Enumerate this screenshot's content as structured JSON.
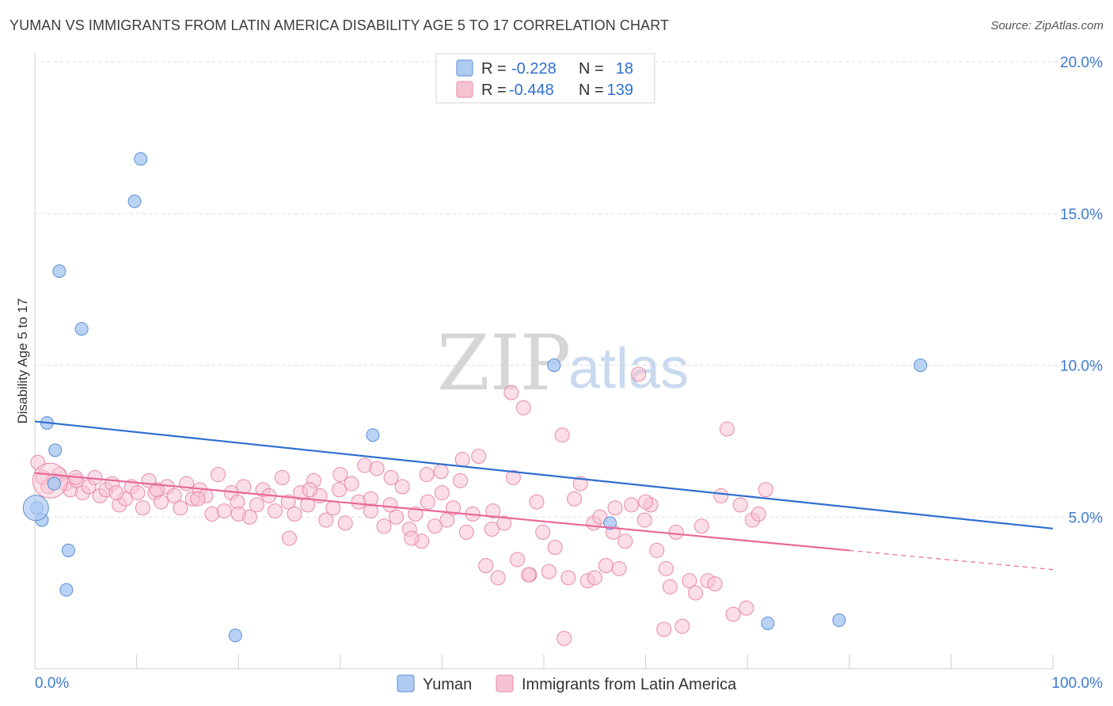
{
  "header": {
    "title": "YUMAN VS IMMIGRANTS FROM LATIN AMERICA DISABILITY AGE 5 TO 17 CORRELATION CHART",
    "source": "Source: ZipAtlas.com"
  },
  "watermark": {
    "zip": "ZIP",
    "atlas": "atlas"
  },
  "legend": {
    "rows": [
      {
        "r_label": "R =",
        "r_value": "-0.228",
        "n_label": "N =",
        "n_value": "18"
      },
      {
        "r_label": "R =",
        "r_value": "-0.448",
        "n_label": "N =",
        "n_value": "139"
      }
    ]
  },
  "bottom_legend": {
    "series1": "Yuman",
    "series2": "Immigrants from Latin America"
  },
  "colors": {
    "blue_fill": "#aecbf2",
    "blue_stroke": "#5b8fd6",
    "blue_line": "#2f6fd0",
    "pink_fill": "#f7c3d3",
    "pink_stroke": "#e88aa8",
    "pink_line": "#e8689a",
    "grid": "#dddddd",
    "tick_text": "#3f7bd0"
  },
  "chart_data": {
    "type": "scatter",
    "title": "YUMAN VS IMMIGRANTS FROM LATIN AMERICA DISABILITY AGE 5 TO 17 CORRELATION CHART",
    "xlabel": "",
    "ylabel": "Disability Age 5 to 17",
    "xlim": [
      0,
      100
    ],
    "ylim": [
      0,
      20
    ],
    "x_tick_labels": [
      "0.0%",
      "100.0%"
    ],
    "y_ticks": [
      {
        "value": 5,
        "label": "5.0%"
      },
      {
        "value": 10,
        "label": "10.0%"
      },
      {
        "value": 15,
        "label": "15.0%"
      },
      {
        "value": 20,
        "label": "20.0%"
      }
    ],
    "series": [
      {
        "name": "Yuman",
        "points": [
          [
            0.2,
            5.3
          ],
          [
            0.7,
            4.9
          ],
          [
            1.2,
            8.1
          ],
          [
            2.0,
            7.2
          ],
          [
            1.9,
            6.1
          ],
          [
            3.3,
            3.9
          ],
          [
            3.1,
            2.6
          ],
          [
            2.4,
            13.1
          ],
          [
            4.6,
            11.2
          ],
          [
            9.8,
            15.4
          ],
          [
            10.4,
            16.8
          ],
          [
            19.7,
            1.1
          ],
          [
            33.2,
            7.7
          ],
          [
            51.0,
            10.0
          ],
          [
            56.5,
            4.8
          ],
          [
            87.0,
            10.0
          ],
          [
            72.0,
            1.5
          ],
          [
            79.0,
            1.6
          ]
        ],
        "trend": {
          "x": [
            0,
            100
          ],
          "y": [
            8.15,
            4.62
          ]
        }
      },
      {
        "name": "Immigrants from Latin America",
        "points": [
          [
            0.3,
            6.8
          ],
          [
            0.8,
            6.3
          ],
          [
            1.3,
            6.0
          ],
          [
            1.9,
            6.2
          ],
          [
            2.4,
            6.4
          ],
          [
            3.0,
            6.1
          ],
          [
            3.5,
            5.9
          ],
          [
            4.1,
            6.2
          ],
          [
            4.7,
            5.8
          ],
          [
            5.3,
            6.0
          ],
          [
            5.9,
            6.3
          ],
          [
            6.4,
            5.7
          ],
          [
            7.0,
            5.9
          ],
          [
            7.6,
            6.1
          ],
          [
            8.3,
            5.4
          ],
          [
            8.9,
            5.6
          ],
          [
            9.5,
            6.0
          ],
          [
            10.1,
            5.8
          ],
          [
            10.6,
            5.3
          ],
          [
            11.2,
            6.2
          ],
          [
            11.8,
            5.8
          ],
          [
            12.4,
            5.5
          ],
          [
            13.0,
            6.0
          ],
          [
            13.7,
            5.7
          ],
          [
            14.3,
            5.3
          ],
          [
            14.9,
            6.1
          ],
          [
            15.5,
            5.6
          ],
          [
            16.2,
            5.9
          ],
          [
            16.8,
            5.7
          ],
          [
            17.4,
            5.1
          ],
          [
            18.0,
            6.4
          ],
          [
            18.6,
            5.2
          ],
          [
            19.3,
            5.8
          ],
          [
            19.9,
            5.5
          ],
          [
            20.5,
            6.0
          ],
          [
            21.1,
            5.0
          ],
          [
            21.8,
            5.4
          ],
          [
            22.4,
            5.9
          ],
          [
            23.0,
            5.7
          ],
          [
            23.6,
            5.2
          ],
          [
            24.3,
            6.3
          ],
          [
            24.9,
            5.5
          ],
          [
            25.5,
            5.1
          ],
          [
            26.1,
            5.8
          ],
          [
            26.8,
            5.4
          ],
          [
            27.4,
            6.2
          ],
          [
            28.0,
            5.7
          ],
          [
            28.6,
            4.9
          ],
          [
            29.3,
            5.3
          ],
          [
            29.9,
            5.9
          ],
          [
            30.5,
            4.8
          ],
          [
            31.1,
            6.1
          ],
          [
            31.8,
            5.5
          ],
          [
            32.4,
            6.7
          ],
          [
            33.0,
            5.2
          ],
          [
            33.6,
            6.6
          ],
          [
            34.3,
            4.7
          ],
          [
            34.9,
            5.4
          ],
          [
            35.5,
            5.0
          ],
          [
            36.1,
            6.0
          ],
          [
            36.8,
            4.6
          ],
          [
            37.4,
            5.1
          ],
          [
            38.0,
            4.2
          ],
          [
            38.6,
            5.5
          ],
          [
            39.3,
            4.7
          ],
          [
            39.9,
            6.5
          ],
          [
            40.5,
            4.9
          ],
          [
            41.1,
            5.3
          ],
          [
            41.8,
            6.2
          ],
          [
            42.4,
            4.5
          ],
          [
            43.0,
            5.1
          ],
          [
            43.6,
            7.0
          ],
          [
            44.3,
            3.4
          ],
          [
            44.9,
            4.6
          ],
          [
            45.5,
            3.0
          ],
          [
            46.1,
            4.8
          ],
          [
            46.8,
            9.1
          ],
          [
            47.4,
            3.6
          ],
          [
            48.0,
            8.6
          ],
          [
            48.6,
            3.1
          ],
          [
            49.3,
            5.5
          ],
          [
            49.9,
            4.5
          ],
          [
            50.5,
            3.2
          ],
          [
            51.1,
            4.0
          ],
          [
            51.8,
            7.7
          ],
          [
            52.4,
            3.0
          ],
          [
            53.0,
            5.6
          ],
          [
            53.6,
            6.1
          ],
          [
            54.3,
            2.9
          ],
          [
            54.9,
            4.8
          ],
          [
            55.5,
            5.0
          ],
          [
            56.1,
            3.4
          ],
          [
            56.8,
            4.5
          ],
          [
            57.4,
            3.3
          ],
          [
            58.0,
            4.2
          ],
          [
            58.6,
            5.4
          ],
          [
            59.3,
            9.7
          ],
          [
            59.9,
            4.9
          ],
          [
            60.5,
            5.4
          ],
          [
            61.1,
            3.9
          ],
          [
            61.8,
            1.3
          ],
          [
            62.4,
            2.7
          ],
          [
            63.0,
            4.5
          ],
          [
            63.6,
            1.4
          ],
          [
            64.3,
            2.9
          ],
          [
            64.9,
            2.5
          ],
          [
            65.5,
            4.7
          ],
          [
            66.1,
            2.9
          ],
          [
            66.8,
            2.8
          ],
          [
            67.4,
            5.7
          ],
          [
            68.0,
            7.9
          ],
          [
            68.6,
            1.8
          ],
          [
            69.3,
            5.4
          ],
          [
            69.9,
            2.0
          ],
          [
            70.5,
            4.9
          ],
          [
            71.1,
            5.1
          ],
          [
            71.8,
            5.9
          ],
          [
            37.0,
            4.3
          ],
          [
            35.0,
            6.3
          ],
          [
            30.0,
            6.4
          ],
          [
            27.0,
            5.9
          ],
          [
            25.0,
            4.3
          ],
          [
            45.0,
            5.2
          ],
          [
            47.0,
            6.3
          ],
          [
            52.0,
            1.0
          ],
          [
            55.0,
            3.0
          ],
          [
            57.0,
            5.3
          ],
          [
            60.0,
            5.5
          ],
          [
            62.0,
            3.3
          ],
          [
            48.5,
            3.1
          ],
          [
            40.0,
            5.8
          ],
          [
            42.0,
            6.9
          ],
          [
            38.5,
            6.4
          ],
          [
            33.0,
            5.6
          ],
          [
            20.0,
            5.1
          ],
          [
            16.0,
            5.6
          ],
          [
            12.0,
            5.9
          ],
          [
            8.0,
            5.8
          ],
          [
            4.0,
            6.3
          ]
        ],
        "trend": {
          "x": [
            0,
            80
          ],
          "y": [
            6.45,
            3.9
          ]
        },
        "trend_dashed": {
          "x": [
            80,
            100
          ],
          "y": [
            3.9,
            3.27
          ]
        }
      }
    ]
  }
}
